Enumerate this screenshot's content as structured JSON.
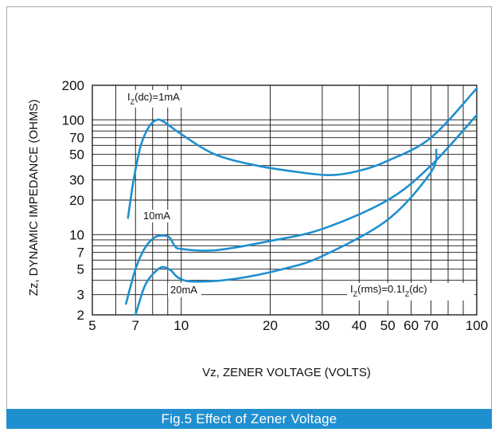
{
  "chart_data": {
    "type": "line",
    "xlabel": "Vz, ZENER VOLTAGE (VOLTS)",
    "ylabel": "Zz, DYNAMIC IMPEDANCE (OHMS)",
    "xscale": "log",
    "yscale": "log",
    "xlim": [
      5,
      100
    ],
    "ylim": [
      2,
      200
    ],
    "xticks": [
      5,
      7,
      10,
      20,
      30,
      40,
      50,
      60,
      70,
      100
    ],
    "yticks": [
      2,
      3,
      5,
      7,
      10,
      20,
      30,
      50,
      70,
      100,
      200
    ],
    "grid": true,
    "line_color": "#1f8fd0",
    "series": [
      {
        "name": "IZ(dc)=1mA",
        "points": [
          [
            6.6,
            14
          ],
          [
            6.9,
            30
          ],
          [
            7.3,
            60
          ],
          [
            7.8,
            88
          ],
          [
            8.3,
            100
          ],
          [
            8.8,
            95
          ],
          [
            10,
            75
          ],
          [
            13,
            50
          ],
          [
            18,
            40
          ],
          [
            25,
            35
          ],
          [
            32,
            33
          ],
          [
            40,
            36
          ],
          [
            50,
            44
          ],
          [
            70,
            70
          ],
          [
            100,
            188
          ]
        ]
      },
      {
        "name": "10mA",
        "points": [
          [
            6.5,
            2.5
          ],
          [
            7,
            5
          ],
          [
            7.5,
            7.5
          ],
          [
            8,
            9.2
          ],
          [
            8.5,
            9.8
          ],
          [
            9.1,
            9.5
          ],
          [
            9.5,
            8
          ],
          [
            10,
            7.5
          ],
          [
            13,
            7.3
          ],
          [
            20,
            8.8
          ],
          [
            30,
            11.2
          ],
          [
            50,
            20
          ],
          [
            70,
            40
          ],
          [
            100,
            110
          ]
        ]
      },
      {
        "name": "20mA",
        "points": [
          [
            7,
            2
          ],
          [
            7.5,
            3.5
          ],
          [
            8,
            4.5
          ],
          [
            8.6,
            5.2
          ],
          [
            9.2,
            4.9
          ],
          [
            9.8,
            4.2
          ],
          [
            11,
            3.9
          ],
          [
            15,
            4.1
          ],
          [
            22,
            5
          ],
          [
            30,
            6.5
          ],
          [
            50,
            13.5
          ],
          [
            70,
            35
          ],
          [
            73,
            55
          ]
        ]
      }
    ],
    "annotations": [
      {
        "text": "IZ(dc)=1mA"
      },
      {
        "text": "10mA"
      },
      {
        "text": "20mA"
      },
      {
        "text": "IZ(rms)=0.1IZ(dc)"
      }
    ]
  },
  "caption": "Fig.5 Effect of Zener Voltage",
  "labels": {
    "ann1_a": "I",
    "ann1_b": "Z",
    "ann1_c": "(dc)=1mA",
    "ann2": "10mA",
    "ann3": "20mA",
    "ann4_a": "I",
    "ann4_b": "Z",
    "ann4_c": "(rms)=0.1I",
    "ann4_d": "Z",
    "ann4_e": "(dc)"
  }
}
